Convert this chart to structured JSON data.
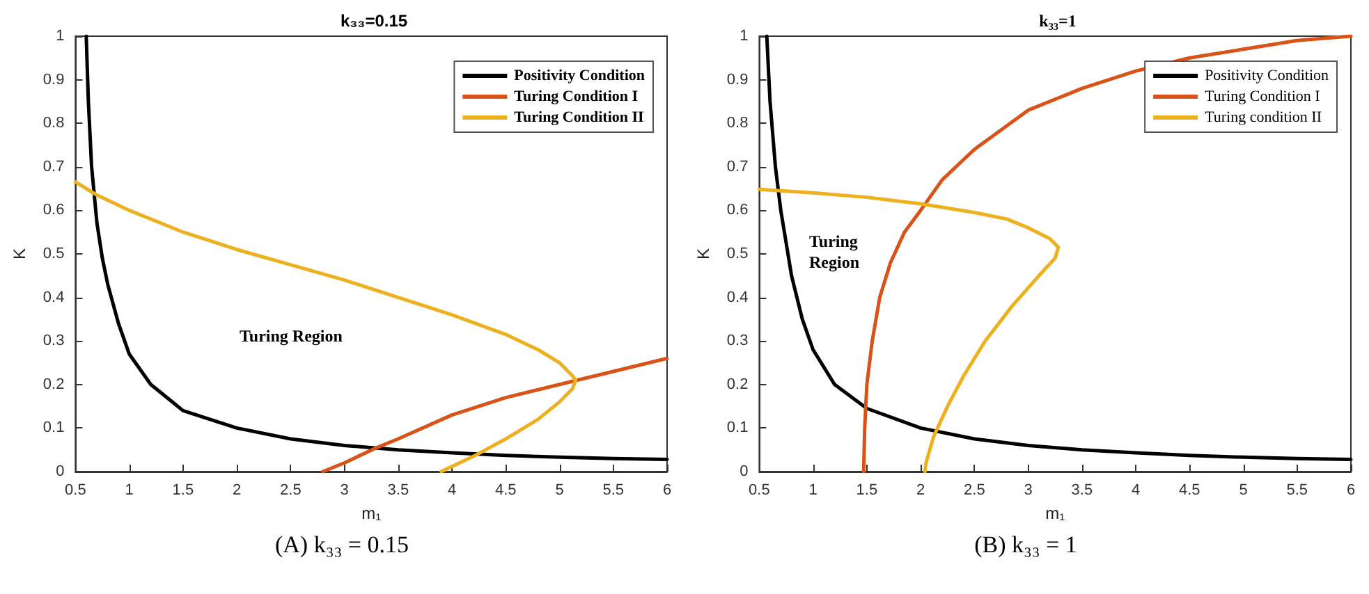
{
  "chart_data": [
    {
      "type": "line",
      "title": "k₃₃=0.15",
      "xlabel": "m₁",
      "ylabel": "K",
      "xlim": [
        0.5,
        6
      ],
      "ylim": [
        0,
        1
      ],
      "xticks": [
        0.5,
        1,
        1.5,
        2,
        2.5,
        3,
        3.5,
        4,
        4.5,
        5,
        5.5,
        6
      ],
      "yticks": [
        0,
        0.1,
        0.2,
        0.3,
        0.4,
        0.5,
        0.6,
        0.7,
        0.8,
        0.9,
        1
      ],
      "grid": false,
      "legend": "top right",
      "marker": "none",
      "line_style": "solid",
      "annotations": [
        "Turing Region",
        "(A) k₃₃ = 0.15"
      ],
      "series": [
        {
          "name": "Positivity Condition",
          "color": "#000000",
          "x": [
            0.6,
            0.62,
            0.65,
            0.7,
            0.75,
            0.8,
            0.9,
            1,
            1.2,
            1.5,
            2,
            2.5,
            3,
            3.5,
            4,
            4.5,
            5,
            5.5,
            6
          ],
          "values": [
            1,
            0.85,
            0.7,
            0.57,
            0.49,
            0.43,
            0.34,
            0.27,
            0.2,
            0.14,
            0.1,
            0.075,
            0.06,
            0.05,
            0.043,
            0.037,
            0.033,
            0.03,
            0.028
          ]
        },
        {
          "name": "Turing Condition I",
          "color": "#d95319",
          "x": [
            2.8,
            3,
            3.3,
            3.5,
            4,
            4.5,
            5,
            5.5,
            6
          ],
          "values": [
            0,
            0.02,
            0.055,
            0.075,
            0.13,
            0.17,
            0.2,
            0.23,
            0.26
          ]
        },
        {
          "name": "Turing Condition II",
          "color": "#edb120",
          "x": [
            0.5,
            0.7,
            1,
            1.5,
            2,
            2.5,
            3,
            3.5,
            4,
            4.5,
            4.8,
            5,
            5.12,
            5.15,
            5.12,
            5,
            4.8,
            4.5,
            4.2,
            3.9
          ],
          "values": [
            0.665,
            0.635,
            0.6,
            0.55,
            0.51,
            0.475,
            0.44,
            0.4,
            0.36,
            0.315,
            0.28,
            0.25,
            0.22,
            0.21,
            0.19,
            0.16,
            0.12,
            0.075,
            0.035,
            0
          ]
        }
      ]
    },
    {
      "type": "line",
      "title": "k₃₃=1",
      "xlabel": "m₁",
      "ylabel": "K",
      "xlim": [
        0.5,
        6
      ],
      "ylim": [
        0,
        1
      ],
      "xticks": [
        0.5,
        1,
        1.5,
        2,
        2.5,
        3,
        3.5,
        4,
        4.5,
        5,
        5.5,
        6
      ],
      "yticks": [
        0,
        0.1,
        0.2,
        0.3,
        0.4,
        0.5,
        0.6,
        0.7,
        0.8,
        0.9,
        1
      ],
      "grid": false,
      "legend": "top right",
      "marker": "none",
      "line_style": "solid",
      "annotations": [
        "Turing Region",
        "(B) k₃₃ = 1"
      ],
      "series": [
        {
          "name": "Positivity Condition",
          "color": "#000000",
          "x": [
            0.57,
            0.6,
            0.65,
            0.7,
            0.8,
            0.9,
            1,
            1.2,
            1.5,
            2,
            2.5,
            3,
            3.5,
            4,
            4.5,
            5,
            5.5,
            6
          ],
          "values": [
            1,
            0.85,
            0.7,
            0.6,
            0.45,
            0.35,
            0.28,
            0.2,
            0.145,
            0.1,
            0.075,
            0.06,
            0.05,
            0.043,
            0.037,
            0.033,
            0.03,
            0.028
          ]
        },
        {
          "name": "Turing Condition I",
          "color": "#d95319",
          "x": [
            1.47,
            1.48,
            1.5,
            1.55,
            1.62,
            1.72,
            1.85,
            2,
            2.2,
            2.5,
            3,
            3.5,
            4,
            4.5,
            5,
            5.5,
            6
          ],
          "values": [
            0,
            0.1,
            0.2,
            0.3,
            0.4,
            0.48,
            0.55,
            0.6,
            0.67,
            0.74,
            0.83,
            0.88,
            0.92,
            0.95,
            0.97,
            0.99,
            1
          ]
        },
        {
          "name": "Turing condition II",
          "color": "#edb120",
          "x": [
            0.5,
            1,
            1.5,
            2,
            2.5,
            2.8,
            3,
            3.2,
            3.28,
            3.25,
            3.1,
            2.85,
            2.6,
            2.4,
            2.25,
            2.12,
            2.05,
            2.04
          ],
          "values": [
            0.648,
            0.64,
            0.63,
            0.615,
            0.595,
            0.58,
            0.56,
            0.535,
            0.515,
            0.49,
            0.45,
            0.38,
            0.3,
            0.22,
            0.15,
            0.08,
            0.02,
            0
          ]
        }
      ]
    }
  ]
}
